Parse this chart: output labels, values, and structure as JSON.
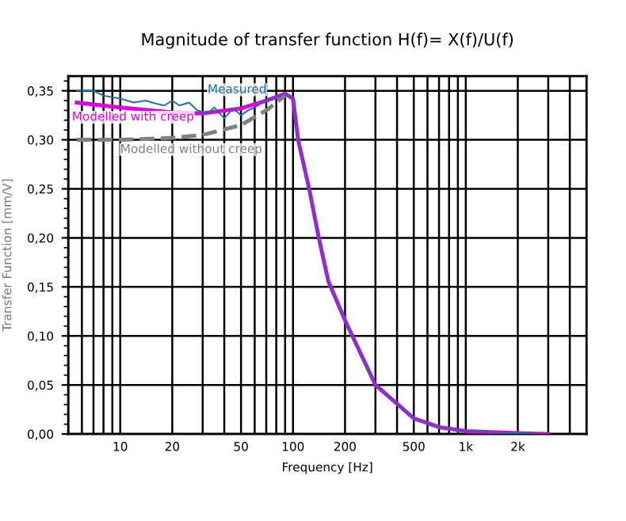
{
  "chart_data": {
    "type": "line",
    "title": "Magnitude of transfer function H(f)= X(f)/U(f)",
    "xlabel": "Frequency [Hz]",
    "ylabel": "Transfer Function [mm/V]",
    "log": "x",
    "grid": true,
    "legend": false,
    "marker": "none",
    "xlim": [
      5,
      5000
    ],
    "ylim": [
      0,
      0.365
    ],
    "xticks": [
      10,
      20,
      50,
      100,
      200,
      500,
      {
        "value": 1000,
        "label": "1k"
      },
      {
        "value": 2000,
        "label": "2k"
      }
    ],
    "yticks": [
      {
        "value": 0,
        "label": "0,00"
      },
      {
        "value": 0.05,
        "label": "0,05"
      },
      {
        "value": 0.1,
        "label": "0,10"
      },
      {
        "value": 0.15,
        "label": "0,15"
      },
      {
        "value": 0.2,
        "label": "0,20"
      },
      {
        "value": 0.25,
        "label": "0,25"
      },
      {
        "value": 0.3,
        "label": "0,30"
      },
      {
        "value": 0.35,
        "label": "0,35"
      }
    ],
    "series": [
      {
        "name": "Measured",
        "color": "#1f6fa8",
        "line_style": "solid",
        "x": [
          5.6,
          7,
          8,
          10,
          12,
          14,
          16,
          18,
          20,
          22,
          25,
          28,
          32,
          35,
          40,
          45,
          50,
          55,
          60,
          70,
          80,
          90,
          100,
          107,
          124,
          141,
          160,
          200,
          300,
          500,
          700,
          1000,
          2000,
          3000
        ],
        "values": [
          0.35,
          0.35,
          0.345,
          0.342,
          0.338,
          0.34,
          0.337,
          0.335,
          0.34,
          0.335,
          0.338,
          0.33,
          0.327,
          0.333,
          0.322,
          0.332,
          0.325,
          0.33,
          0.333,
          0.34,
          0.343,
          0.347,
          0.342,
          0.3,
          0.25,
          0.2,
          0.156,
          0.116,
          0.05,
          0.016,
          0.007,
          0.003,
          0.001,
          0.0
        ]
      },
      {
        "name": "Modelled with creep",
        "color": "#e000e0",
        "line_style": "solid",
        "x": [
          5.6,
          10,
          20,
          30,
          50,
          70,
          90,
          100,
          107,
          124,
          141,
          160,
          200,
          300,
          500,
          700,
          1000,
          2000,
          3000
        ],
        "values": [
          0.338,
          0.333,
          0.328,
          0.327,
          0.332,
          0.34,
          0.347,
          0.342,
          0.3,
          0.25,
          0.2,
          0.156,
          0.116,
          0.05,
          0.016,
          0.007,
          0.003,
          0.001,
          0.0
        ]
      },
      {
        "name": "Modelled without creep",
        "color": "#808080",
        "line_style": "dashed",
        "x": [
          5.6,
          10,
          20,
          30,
          50,
          70,
          90
        ],
        "values": [
          0.3,
          0.3,
          0.302,
          0.305,
          0.315,
          0.33,
          0.345
        ]
      }
    ]
  }
}
